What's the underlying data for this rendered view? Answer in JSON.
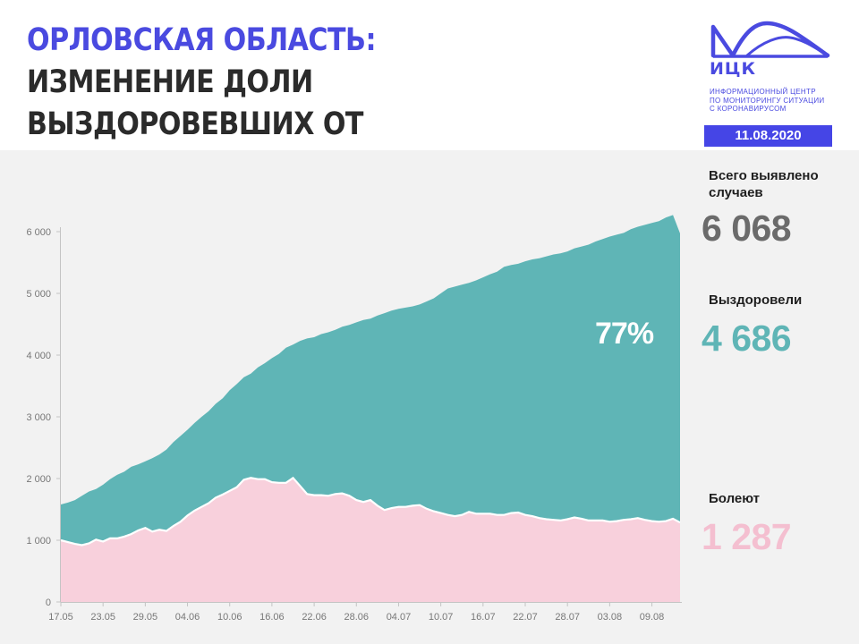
{
  "header": {
    "title_accent": "ОРЛОВСКАЯ ОБЛАСТЬ:",
    "title_rest_line1": "ИЗМЕНЕНИЕ ДОЛИ",
    "title_line2": "ВЫЗДОРОВЕВШИХ ОТ КОРОНАВИРУСА",
    "logo_text": "ИЦК",
    "logo_sub": [
      "ИНФОРМАЦИОННЫЙ ЦЕНТР",
      "ПО МОНИТОРИНГУ СИТУАЦИИ",
      "С КОРОНАВИРУСОМ"
    ],
    "date": "11.08.2020",
    "brand_color": "#4a4ae0"
  },
  "stats": {
    "total_label": "Всего выявлено случаев",
    "total_value": "6 068",
    "recovered_label": "Выздоровели",
    "recovered_value": "4 686",
    "sick_label": "Болеют",
    "sick_value": "1 287",
    "recovered_share": "77%"
  },
  "colors": {
    "recovered": "#5fb5b6",
    "sick": "#f8d0dc",
    "total_text": "#6b6b6b",
    "recovered_text": "#5fb5b6",
    "sick_text": "#f4bfd0",
    "background": "#f2f2f2"
  },
  "chart_data": {
    "type": "area",
    "x_start": "17.05",
    "x_end": "10.08",
    "xticks": [
      "17.05",
      "23.05",
      "29.05",
      "04.06",
      "10.06",
      "16.06",
      "22.06",
      "28.06",
      "04.07",
      "10.07",
      "16.07",
      "22.07",
      "28.07",
      "03.08",
      "09.08"
    ],
    "yticks": [
      "0",
      "1 000",
      "2 000",
      "3 000",
      "4 000",
      "5 000",
      "6 000"
    ],
    "ylim": [
      0,
      6300
    ],
    "grid": false,
    "stacked": true,
    "series": [
      {
        "name": "Болеют",
        "values": [
          1000,
          970,
          940,
          920,
          950,
          1010,
          980,
          1030,
          1030,
          1060,
          1100,
          1160,
          1200,
          1140,
          1170,
          1150,
          1230,
          1300,
          1400,
          1480,
          1540,
          1600,
          1690,
          1740,
          1800,
          1860,
          1980,
          2010,
          1990,
          1990,
          1940,
          1930,
          1930,
          2010,
          1880,
          1750,
          1730,
          1730,
          1720,
          1750,
          1760,
          1720,
          1650,
          1620,
          1650,
          1560,
          1490,
          1520,
          1540,
          1540,
          1560,
          1570,
          1510,
          1470,
          1440,
          1410,
          1390,
          1410,
          1460,
          1430,
          1430,
          1430,
          1410,
          1410,
          1440,
          1450,
          1410,
          1390,
          1360,
          1340,
          1330,
          1320,
          1340,
          1370,
          1350,
          1320,
          1320,
          1320,
          1300,
          1310,
          1330,
          1340,
          1360,
          1330,
          1310,
          1300,
          1310,
          1350,
          1287
        ]
      },
      {
        "name": "Выздоровели",
        "values": [
          580,
          640,
          710,
          800,
          840,
          820,
          920,
          960,
          1030,
          1050,
          1090,
          1070,
          1080,
          1190,
          1220,
          1320,
          1360,
          1390,
          1390,
          1420,
          1460,
          1490,
          1520,
          1560,
          1630,
          1670,
          1660,
          1690,
          1810,
          1880,
          2010,
          2090,
          2190,
          2160,
          2350,
          2520,
          2560,
          2610,
          2650,
          2660,
          2700,
          2770,
          2880,
          2950,
          2940,
          3080,
          3190,
          3200,
          3210,
          3230,
          3230,
          3250,
          3360,
          3450,
          3560,
          3670,
          3720,
          3730,
          3710,
          3780,
          3830,
          3880,
          3940,
          4020,
          4020,
          4030,
          4110,
          4160,
          4210,
          4260,
          4300,
          4330,
          4340,
          4360,
          4410,
          4470,
          4520,
          4560,
          4620,
          4640,
          4650,
          4700,
          4720,
          4780,
          4830,
          4870,
          4920,
          4920,
          4686
        ]
      }
    ]
  }
}
